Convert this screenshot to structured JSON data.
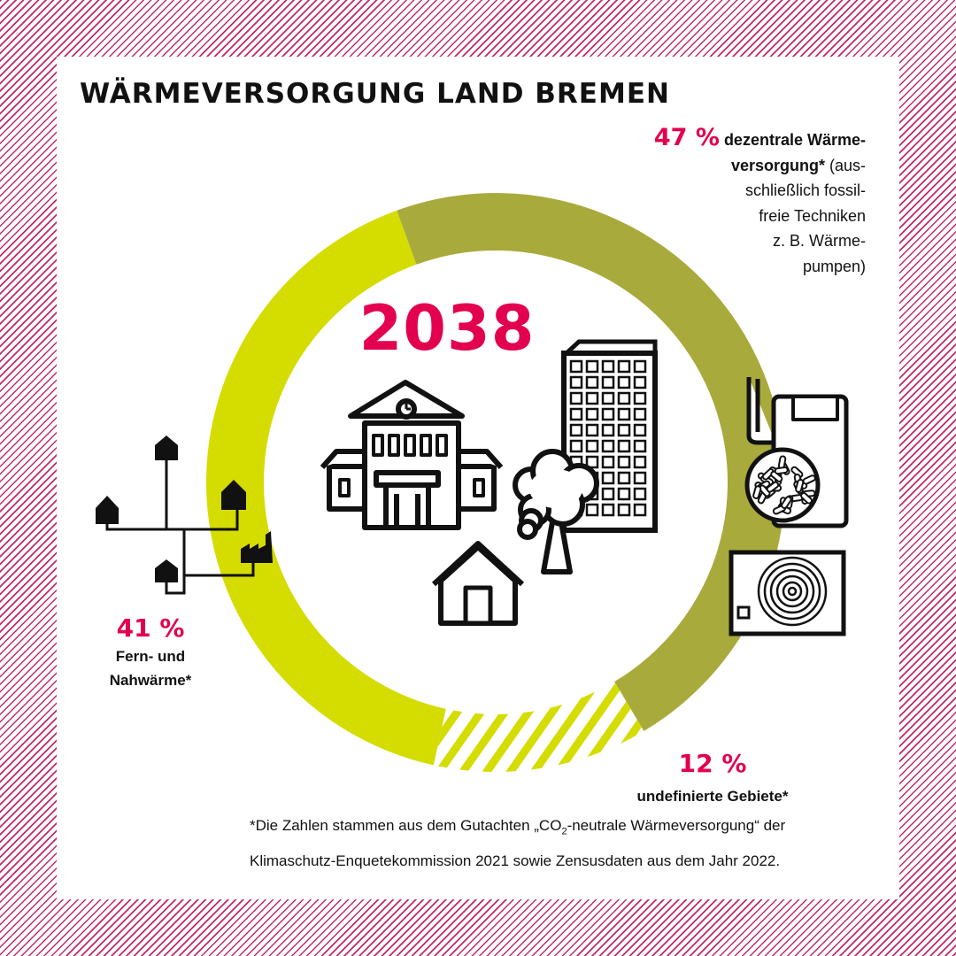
{
  "title": "WÄRMEVERSORGUNG LAND BREMEN",
  "year": "2038",
  "chart_data": {
    "type": "pie",
    "variant": "donut",
    "slices": [
      {
        "name": "dezentrale Wärmeversorgung",
        "value": 47,
        "color": "#a8aa3c",
        "pattern": "solid"
      },
      {
        "name": "undefinierte Gebiete",
        "value": 12,
        "color": "#d4dc00",
        "pattern": "striped"
      },
      {
        "name": "Fern- und Nahwärme",
        "value": 41,
        "color": "#d4dc00",
        "pattern": "solid"
      }
    ]
  },
  "labels": {
    "dezentral": {
      "percent": "47 %",
      "name_line1": "dezentrale Wärme-",
      "name_line2": "versorgung*",
      "detail_line1": "(aus-",
      "detail_line2": "schließlich fossil-",
      "detail_line3": "freie Techniken",
      "detail_line4": "z. B. Wärme-",
      "detail_line5": "pumpen)"
    },
    "fern": {
      "percent": "41 %",
      "line1": "Fern- und",
      "line2": "Nahwärme*"
    },
    "undefiniert": {
      "percent": "12 %",
      "line1": "undefinierte Gebiete*"
    }
  },
  "footnote": {
    "line1_pre": "*Die Zahlen stammen aus dem Gutachten „CO",
    "line1_sub": "2",
    "line1_post": "-neutrale Wärmeversorgung“ der",
    "line2": "Klimaschutz-Enquetekommission 2021 sowie Zensusdaten aus dem Jahr 2022."
  },
  "icons": [
    "school-building-icon",
    "office-tower-icon",
    "tree-icon",
    "house-icon",
    "heating-network-icon",
    "factory-icon",
    "pellet-boiler-icon",
    "heat-pump-icon"
  ]
}
